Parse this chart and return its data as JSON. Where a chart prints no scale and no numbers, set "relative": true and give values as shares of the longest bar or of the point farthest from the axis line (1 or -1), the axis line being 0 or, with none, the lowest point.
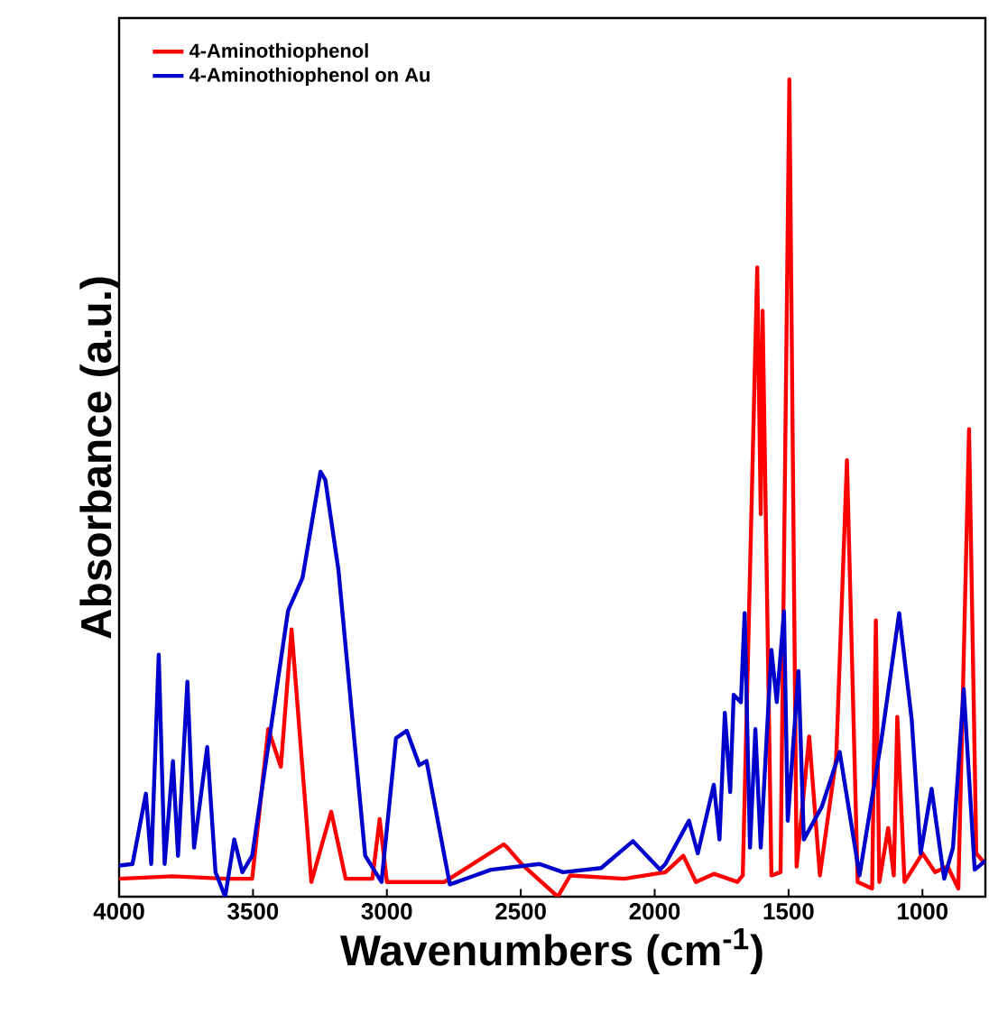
{
  "chart_data": {
    "type": "line",
    "relative": true,
    "xlabel": "Wavenumbers (cm$^{-1}$)",
    "ylabel": "Absorbance (a.u.)",
    "xlim": [
      4000,
      765
    ],
    "xticks": [
      4000,
      3500,
      3000,
      2500,
      2000,
      1500,
      1000
    ],
    "legend": "top left",
    "grid": false,
    "marker": "none",
    "line_style": "solid",
    "series": [
      {
        "name": "4-Aminothiophenol",
        "color": "#ff0000",
        "x": [
          4000,
          3800,
          3600,
          3503,
          3443,
          3396,
          3356,
          3282,
          3208,
          3154,
          3054,
          3027,
          3000,
          2785,
          2564,
          2550,
          2497,
          2362,
          2315,
          2114,
          1960,
          1893,
          1846,
          1779,
          1691,
          1671,
          1617,
          1604,
          1597,
          1564,
          1530,
          1497,
          1470,
          1423,
          1383,
          1322,
          1282,
          1242,
          1188,
          1174,
          1161,
          1128,
          1107,
          1094,
          1067,
          1000,
          953,
          906,
          866,
          826,
          799,
          765
        ],
        "values": [
          0.022,
          0.025,
          0.022,
          0.022,
          0.205,
          0.159,
          0.327,
          0.018,
          0.104,
          0.022,
          0.022,
          0.095,
          0.018,
          0.018,
          0.064,
          0.06,
          0.04,
          0.0,
          0.026,
          0.022,
          0.03,
          0.05,
          0.018,
          0.028,
          0.018,
          0.026,
          0.77,
          0.468,
          0.717,
          0.026,
          0.03,
          1.0,
          0.037,
          0.196,
          0.026,
          0.17,
          0.534,
          0.018,
          0.01,
          0.338,
          0.018,
          0.084,
          0.026,
          0.22,
          0.018,
          0.053,
          0.03,
          0.037,
          0.01,
          0.572,
          0.053,
          0.04
        ]
      },
      {
        "name": "4-Aminothiophenol on Au",
        "color": "#0000cc",
        "x": [
          4000,
          3950,
          3900,
          3880,
          3852,
          3830,
          3799,
          3780,
          3745,
          3720,
          3671,
          3640,
          3604,
          3570,
          3540,
          3503,
          3369,
          3315,
          3248,
          3230,
          3181,
          3081,
          3020,
          2966,
          2926,
          2879,
          2852,
          2765,
          2611,
          2430,
          2342,
          2200,
          2081,
          1980,
          1960,
          1872,
          1839,
          1779,
          1758,
          1738,
          1718,
          1705,
          1678,
          1664,
          1644,
          1624,
          1604,
          1564,
          1544,
          1517,
          1503,
          1463,
          1443,
          1376,
          1309,
          1235,
          1154,
          1087,
          1040,
          1007,
          966,
          919,
          886,
          846,
          805,
          765
        ],
        "values": [
          0.038,
          0.04,
          0.126,
          0.04,
          0.296,
          0.04,
          0.166,
          0.05,
          0.263,
          0.06,
          0.183,
          0.03,
          0.0,
          0.07,
          0.03,
          0.05,
          0.35,
          0.39,
          0.52,
          0.51,
          0.4,
          0.05,
          0.018,
          0.194,
          0.203,
          0.161,
          0.166,
          0.015,
          0.033,
          0.04,
          0.03,
          0.035,
          0.068,
          0.033,
          0.04,
          0.093,
          0.053,
          0.137,
          0.07,
          0.225,
          0.128,
          0.247,
          0.238,
          0.347,
          0.06,
          0.205,
          0.06,
          0.302,
          0.238,
          0.349,
          0.093,
          0.276,
          0.07,
          0.11,
          0.177,
          0.026,
          0.19,
          0.347,
          0.216,
          0.053,
          0.132,
          0.022,
          0.06,
          0.254,
          0.033,
          0.044
        ]
      }
    ]
  }
}
